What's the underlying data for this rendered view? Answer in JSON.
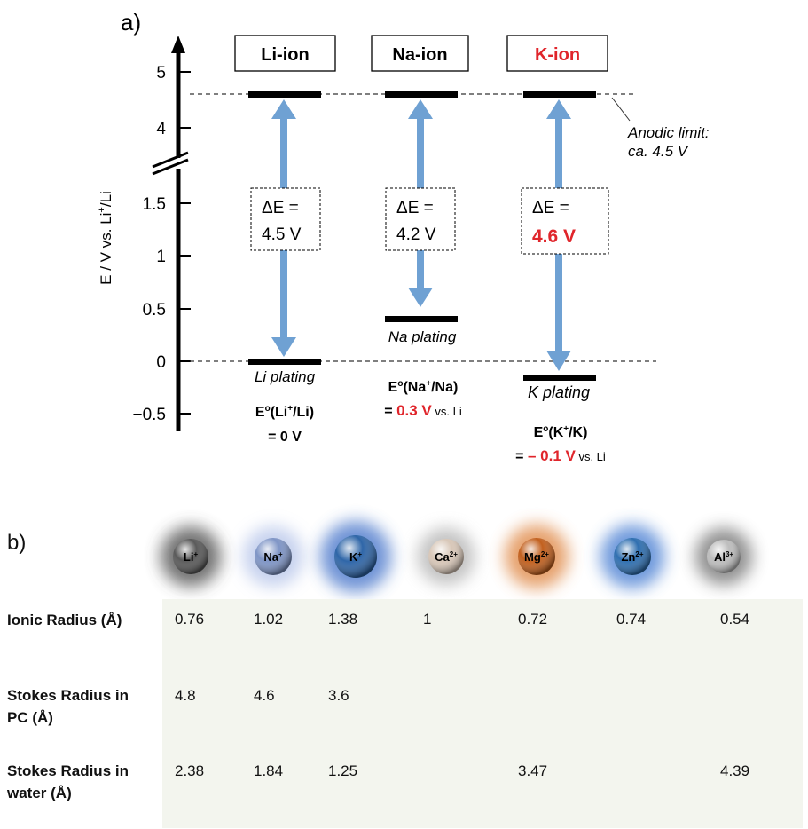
{
  "panel_a": {
    "label": "a)",
    "y_axis_label_parts": [
      "E  /  V vs. Li",
      "+",
      "/Li"
    ],
    "y_ticks": [
      "5",
      "4",
      "1.5",
      "1",
      "0.5",
      "0",
      "−0.5"
    ],
    "anodic_limit": [
      "Anodic limit:",
      "ca. 4.5 V"
    ],
    "systems": [
      {
        "name": "Li-ion",
        "name_color": "#000000",
        "delta_e_line1": "ΔE =",
        "delta_e_line2": "4.5 V",
        "plating": "Li plating",
        "potential_line1": [
          "E",
          "o",
          "(Li",
          "+",
          "/Li)"
        ],
        "potential_line2": [
          "= 0 V",
          "",
          ""
        ]
      },
      {
        "name": "Na-ion",
        "name_color": "#000000",
        "delta_e_line1": "ΔE =",
        "delta_e_line2": "4.2 V",
        "plating": "Na plating",
        "potential_line1": [
          "E",
          "o",
          "(Na",
          "+",
          "/Na)"
        ],
        "potential_line2": [
          "= ",
          "0.3 V",
          " vs. Li"
        ]
      },
      {
        "name": "K-ion",
        "name_color": "#e0252b",
        "delta_e_line1": "ΔE =",
        "delta_e_line2": "4.6 V",
        "plating": "K plating",
        "potential_line1": [
          "E",
          "o",
          "(K",
          "+",
          "/K)"
        ],
        "potential_line2": [
          "= ",
          "– 0.1 V",
          " vs. Li"
        ]
      }
    ],
    "colors": {
      "arrow": "#6fa1d3",
      "highlight": "#e0252b"
    }
  },
  "panel_b": {
    "label": "b)",
    "ions": [
      {
        "base": "Li",
        "charge": "+",
        "color": "#5a5a5a",
        "glow": "#444444"
      },
      {
        "base": "Na",
        "charge": "+",
        "color": "#7f95c6",
        "glow": "#b8c6ea"
      },
      {
        "base": "K",
        "charge": "+",
        "color": "#2f66a8",
        "glow": "#3f6fc8"
      },
      {
        "base": "Ca",
        "charge": "2+",
        "color": "#d8c7b8",
        "glow": "#9a9a9a"
      },
      {
        "base": "Mg",
        "charge": "2+",
        "color": "#c2601e",
        "glow": "#e08a48"
      },
      {
        "base": "Zn",
        "charge": "2+",
        "color": "#2f6fb0",
        "glow": "#3f78d0"
      },
      {
        "base": "Al",
        "charge": "3+",
        "color": "#bdbdbd",
        "glow": "#555555"
      }
    ],
    "rows": [
      {
        "label": [
          "Ionic Radius (Å)"
        ],
        "values": [
          "0.76",
          "1.02",
          "1.38",
          "1",
          "0.72",
          "0.74",
          "0.54"
        ]
      },
      {
        "label": [
          "Stokes Radius in",
          "PC (Å)"
        ],
        "values": [
          "4.8",
          "4.6",
          "3.6",
          "",
          "",
          "",
          ""
        ]
      },
      {
        "label": [
          "Stokes Radius in",
          "water (Å)"
        ],
        "values": [
          "2.38",
          "1.84",
          "1.25",
          "",
          "3.47",
          "",
          "4.39"
        ]
      }
    ]
  }
}
